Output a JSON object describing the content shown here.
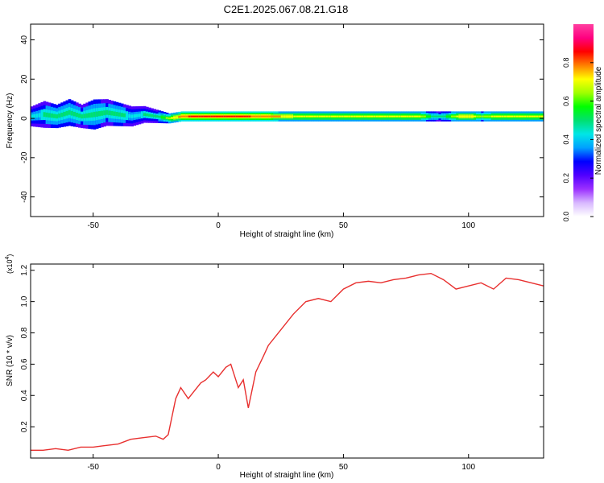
{
  "title": "C2E1.2025.067.08.21.G18",
  "chart_data": [
    {
      "type": "heatmap",
      "xlabel": "Height of straight line (km)",
      "ylabel": "Frequency (Hz)",
      "xlim": [
        -75,
        130
      ],
      "ylim": [
        -50,
        48
      ],
      "x_ticks": [
        -50,
        0,
        50,
        100
      ],
      "y_ticks": [
        -40,
        -20,
        0,
        20,
        40
      ],
      "colorbar": {
        "label": "Normalized spectral amplitude",
        "range": [
          0,
          1
        ],
        "ticks": [
          0.0,
          0.2,
          0.4,
          0.6,
          0.8
        ],
        "tick_labels": [
          "0.0",
          "0.2",
          "0.4",
          "0.6",
          "0.8"
        ],
        "colors": [
          "#ffffff",
          "#d8b8ff",
          "#9b30ff",
          "#5000ff",
          "#0000ff",
          "#00a0ff",
          "#00e6e6",
          "#00e070",
          "#00ff00",
          "#a0ff00",
          "#ffff00",
          "#ff8000",
          "#ff0000",
          "#ff0080",
          "#ff40a0"
        ]
      },
      "ridge": {
        "x": [
          -75,
          -70,
          -65,
          -60,
          -55,
          -50,
          -45,
          -40,
          -35,
          -30,
          -25,
          -20,
          -15,
          -10,
          -5,
          0,
          5,
          10,
          15,
          20,
          25,
          30,
          40,
          50,
          60,
          70,
          80,
          85,
          88,
          90,
          95,
          100,
          105,
          110,
          115,
          120,
          125,
          130
        ],
        "freq_center": [
          1,
          2,
          1,
          3,
          1,
          2,
          3,
          2,
          1,
          2,
          1,
          0,
          1,
          1,
          1,
          1,
          1,
          1,
          1,
          1,
          1,
          1,
          1,
          1,
          1,
          1,
          1,
          1,
          1,
          1,
          1,
          1,
          1,
          1,
          1,
          1,
          1,
          1
        ],
        "band_halfwidth_hz": [
          6,
          8,
          7,
          8,
          7,
          9,
          8,
          7,
          6,
          5,
          4,
          3,
          3,
          3,
          3,
          3,
          3,
          3,
          3,
          3,
          3,
          3,
          3,
          3,
          3,
          3,
          3,
          3,
          3,
          3,
          3,
          3,
          3,
          3,
          3,
          3,
          3,
          3
        ],
        "peak_amplitude": [
          0.45,
          0.5,
          0.55,
          0.55,
          0.5,
          0.55,
          0.5,
          0.55,
          0.45,
          0.5,
          0.5,
          0.7,
          0.85,
          0.9,
          0.9,
          0.9,
          0.9,
          0.9,
          0.85,
          0.85,
          0.8,
          0.75,
          0.75,
          0.75,
          0.75,
          0.75,
          0.75,
          0.55,
          0.5,
          0.55,
          0.75,
          0.8,
          0.65,
          0.75,
          0.75,
          0.75,
          0.75,
          0.75
        ]
      }
    },
    {
      "type": "line",
      "xlabel": "Height of straight line (km)",
      "ylabel": "SNR (10 * v/v)",
      "multiplier_label": "(x10",
      "multiplier_exp": "4",
      "multiplier_close": ")",
      "xlim": [
        -75,
        130
      ],
      "ylim": [
        0.0,
        1.24
      ],
      "x_ticks": [
        -50,
        0,
        50,
        100
      ],
      "y_ticks": [
        0.2,
        0.4,
        0.6,
        0.8,
        1.0,
        1.2
      ],
      "y_tick_labels": [
        "0.2",
        "0.4",
        "0.6",
        "0.8",
        "1.0",
        "1.2"
      ],
      "color": "#e8302f",
      "series": [
        {
          "x": [
            -75,
            -70,
            -65,
            -60,
            -55,
            -50,
            -45,
            -40,
            -35,
            -30,
            -25,
            -22,
            -20,
            -17,
            -15,
            -12,
            -10,
            -7,
            -5,
            -2,
            0,
            3,
            5,
            8,
            10,
            12,
            15,
            18,
            20,
            25,
            30,
            35,
            40,
            45,
            50,
            55,
            60,
            65,
            70,
            75,
            80,
            85,
            90,
            95,
            100,
            105,
            110,
            115,
            120,
            125,
            130
          ],
          "y": [
            0.05,
            0.05,
            0.06,
            0.05,
            0.07,
            0.07,
            0.08,
            0.09,
            0.12,
            0.13,
            0.14,
            0.12,
            0.15,
            0.38,
            0.45,
            0.38,
            0.42,
            0.48,
            0.5,
            0.55,
            0.52,
            0.58,
            0.6,
            0.45,
            0.5,
            0.32,
            0.55,
            0.65,
            0.72,
            0.82,
            0.92,
            1.0,
            1.02,
            1.0,
            1.08,
            1.12,
            1.13,
            1.12,
            1.14,
            1.15,
            1.17,
            1.18,
            1.14,
            1.08,
            1.1,
            1.12,
            1.08,
            1.15,
            1.14,
            1.12,
            1.1
          ]
        }
      ]
    }
  ]
}
